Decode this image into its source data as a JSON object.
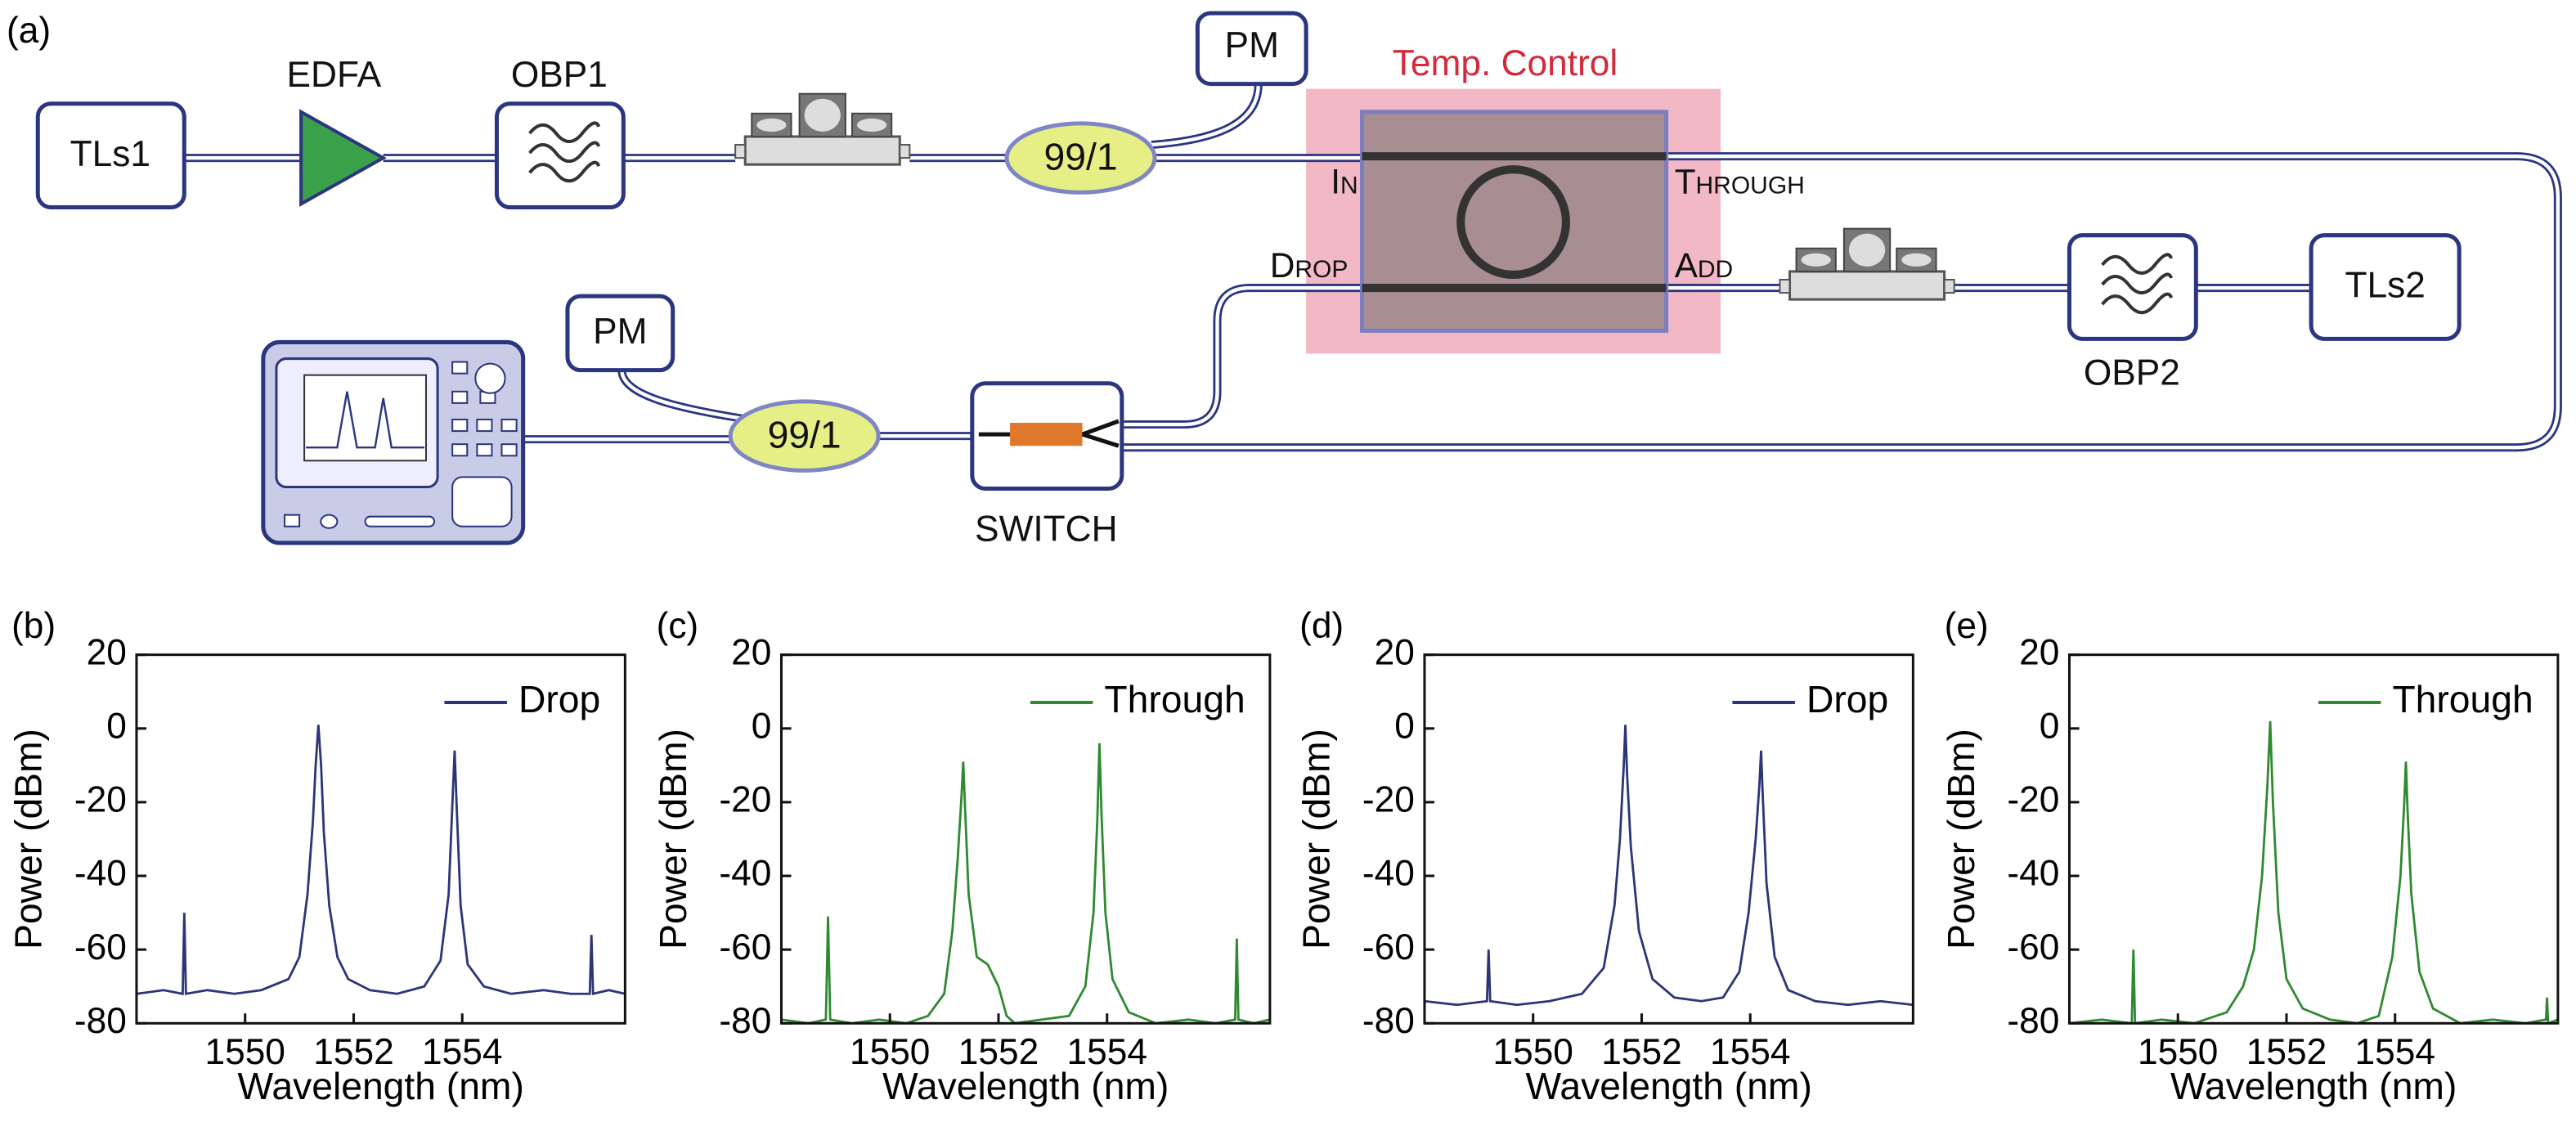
{
  "diagram": {
    "panel_label": "(a)",
    "labels": {
      "tls1": "TLs1",
      "edfa": "EDFA",
      "obp1": "OBP1",
      "pm_top": "PM",
      "splitter_top": "99/1",
      "temp": "Temp. Control",
      "in": "In",
      "through": "Through",
      "drop": "Drop",
      "add": "Add",
      "obp2": "OBP2",
      "tls2": "TLs2",
      "pm_bottom": "PM",
      "splitter_bottom": "99/1",
      "switch": "SWITCH"
    }
  },
  "chart_data": [
    {
      "type": "line",
      "panel_label": "(b)",
      "xlabel": "Wavelength (nm)",
      "ylabel": "Power (dBm)",
      "xlim": [
        1548,
        1557
      ],
      "ylim": [
        -80,
        20
      ],
      "xticks": [
        1550,
        1552,
        1554
      ],
      "yticks": [
        -80,
        -60,
        -40,
        -20,
        0,
        20
      ],
      "legend": "upper right",
      "x": [
        1548.0,
        1548.5,
        1548.85,
        1548.88,
        1548.91,
        1549.3,
        1549.8,
        1550.3,
        1550.8,
        1551.0,
        1551.15,
        1551.25,
        1551.3,
        1551.35,
        1551.4,
        1551.45,
        1551.55,
        1551.7,
        1551.9,
        1552.3,
        1552.8,
        1553.3,
        1553.6,
        1553.75,
        1553.82,
        1553.86,
        1553.9,
        1553.97,
        1554.1,
        1554.4,
        1554.9,
        1555.5,
        1556.0,
        1556.35,
        1556.38,
        1556.41,
        1556.7,
        1557.0
      ],
      "series": [
        {
          "name": "Drop",
          "color": "#2b3578",
          "values": [
            -72,
            -71,
            -72,
            -50,
            -72,
            -71,
            -72,
            -71,
            -68,
            -62,
            -45,
            -25,
            -10,
            1,
            -10,
            -28,
            -48,
            -62,
            -68,
            -71,
            -72,
            -70,
            -63,
            -45,
            -20,
            -6,
            -22,
            -48,
            -64,
            -70,
            -72,
            -71,
            -72,
            -72,
            -56,
            -72,
            -71,
            -72
          ]
        }
      ]
    },
    {
      "type": "line",
      "panel_label": "(c)",
      "xlabel": "Wavelength (nm)",
      "ylabel": "Power (dBm)",
      "xlim": [
        1548,
        1557
      ],
      "ylim": [
        -80,
        20
      ],
      "xticks": [
        1550,
        1552,
        1554
      ],
      "yticks": [
        -80,
        -60,
        -40,
        -20,
        0,
        20
      ],
      "legend": "upper right",
      "x": [
        1548.0,
        1548.5,
        1548.82,
        1548.86,
        1548.9,
        1549.3,
        1549.8,
        1550.3,
        1550.7,
        1551.0,
        1551.15,
        1551.25,
        1551.32,
        1551.35,
        1551.38,
        1551.45,
        1551.6,
        1551.8,
        1552.0,
        1552.15,
        1552.3,
        1552.8,
        1553.3,
        1553.6,
        1553.75,
        1553.82,
        1553.86,
        1553.9,
        1553.97,
        1554.1,
        1554.4,
        1554.9,
        1555.5,
        1556.0,
        1556.36,
        1556.39,
        1556.42,
        1556.7,
        1557.0
      ],
      "series": [
        {
          "name": "Through",
          "color": "#2e8a30",
          "values": [
            -79,
            -80,
            -79,
            -51,
            -79,
            -80,
            -79,
            -80,
            -78,
            -72,
            -55,
            -35,
            -18,
            -9,
            -20,
            -45,
            -62,
            -64,
            -70,
            -78,
            -80,
            -79,
            -78,
            -70,
            -50,
            -25,
            -4,
            -24,
            -50,
            -68,
            -77,
            -80,
            -79,
            -80,
            -79,
            -57,
            -79,
            -80,
            -79
          ]
        }
      ]
    },
    {
      "type": "line",
      "panel_label": "(d)",
      "xlabel": "Wavelength (nm)",
      "ylabel": "Power (dBm)",
      "xlim": [
        1548,
        1557
      ],
      "ylim": [
        -80,
        20
      ],
      "xticks": [
        1550,
        1552,
        1554
      ],
      "yticks": [
        -80,
        -60,
        -40,
        -20,
        0,
        20
      ],
      "legend": "upper right",
      "x": [
        1548.0,
        1548.6,
        1549.15,
        1549.18,
        1549.21,
        1549.7,
        1550.3,
        1550.9,
        1551.3,
        1551.5,
        1551.6,
        1551.67,
        1551.7,
        1551.73,
        1551.8,
        1551.95,
        1552.2,
        1552.6,
        1553.1,
        1553.5,
        1553.8,
        1553.97,
        1554.1,
        1554.17,
        1554.2,
        1554.23,
        1554.3,
        1554.45,
        1554.7,
        1555.2,
        1555.8,
        1556.4,
        1557.0
      ],
      "series": [
        {
          "name": "Drop",
          "color": "#2b3578",
          "values": [
            -74,
            -75,
            -74,
            -60,
            -74,
            -75,
            -74,
            -72,
            -65,
            -48,
            -30,
            -10,
            1,
            -12,
            -32,
            -55,
            -68,
            -73,
            -74,
            -73,
            -66,
            -50,
            -30,
            -15,
            -6,
            -18,
            -42,
            -62,
            -71,
            -74,
            -75,
            -74,
            -75
          ]
        }
      ]
    },
    {
      "type": "line",
      "panel_label": "(e)",
      "xlabel": "Wavelength (nm)",
      "ylabel": "Power (dBm)",
      "xlim": [
        1548,
        1557
      ],
      "ylim": [
        -80,
        20
      ],
      "xticks": [
        1550,
        1552,
        1554
      ],
      "yticks": [
        -80,
        -60,
        -40,
        -20,
        0,
        20
      ],
      "legend": "upper right",
      "x": [
        1548.0,
        1548.6,
        1549.15,
        1549.18,
        1549.21,
        1549.7,
        1550.3,
        1550.9,
        1551.2,
        1551.4,
        1551.55,
        1551.65,
        1551.7,
        1551.75,
        1551.85,
        1552.0,
        1552.3,
        1552.8,
        1553.3,
        1553.7,
        1553.95,
        1554.1,
        1554.17,
        1554.2,
        1554.23,
        1554.3,
        1554.45,
        1554.7,
        1555.2,
        1555.8,
        1556.4,
        1556.78,
        1556.8,
        1556.82,
        1557.0
      ],
      "series": [
        {
          "name": "Through",
          "color": "#2e8a30",
          "values": [
            -80,
            -79,
            -80,
            -60,
            -80,
            -79,
            -80,
            -77,
            -70,
            -60,
            -40,
            -15,
            2,
            -20,
            -50,
            -68,
            -76,
            -79,
            -80,
            -78,
            -62,
            -40,
            -20,
            -9,
            -22,
            -45,
            -66,
            -76,
            -80,
            -79,
            -80,
            -79,
            -73,
            -80,
            -79
          ]
        }
      ]
    }
  ]
}
